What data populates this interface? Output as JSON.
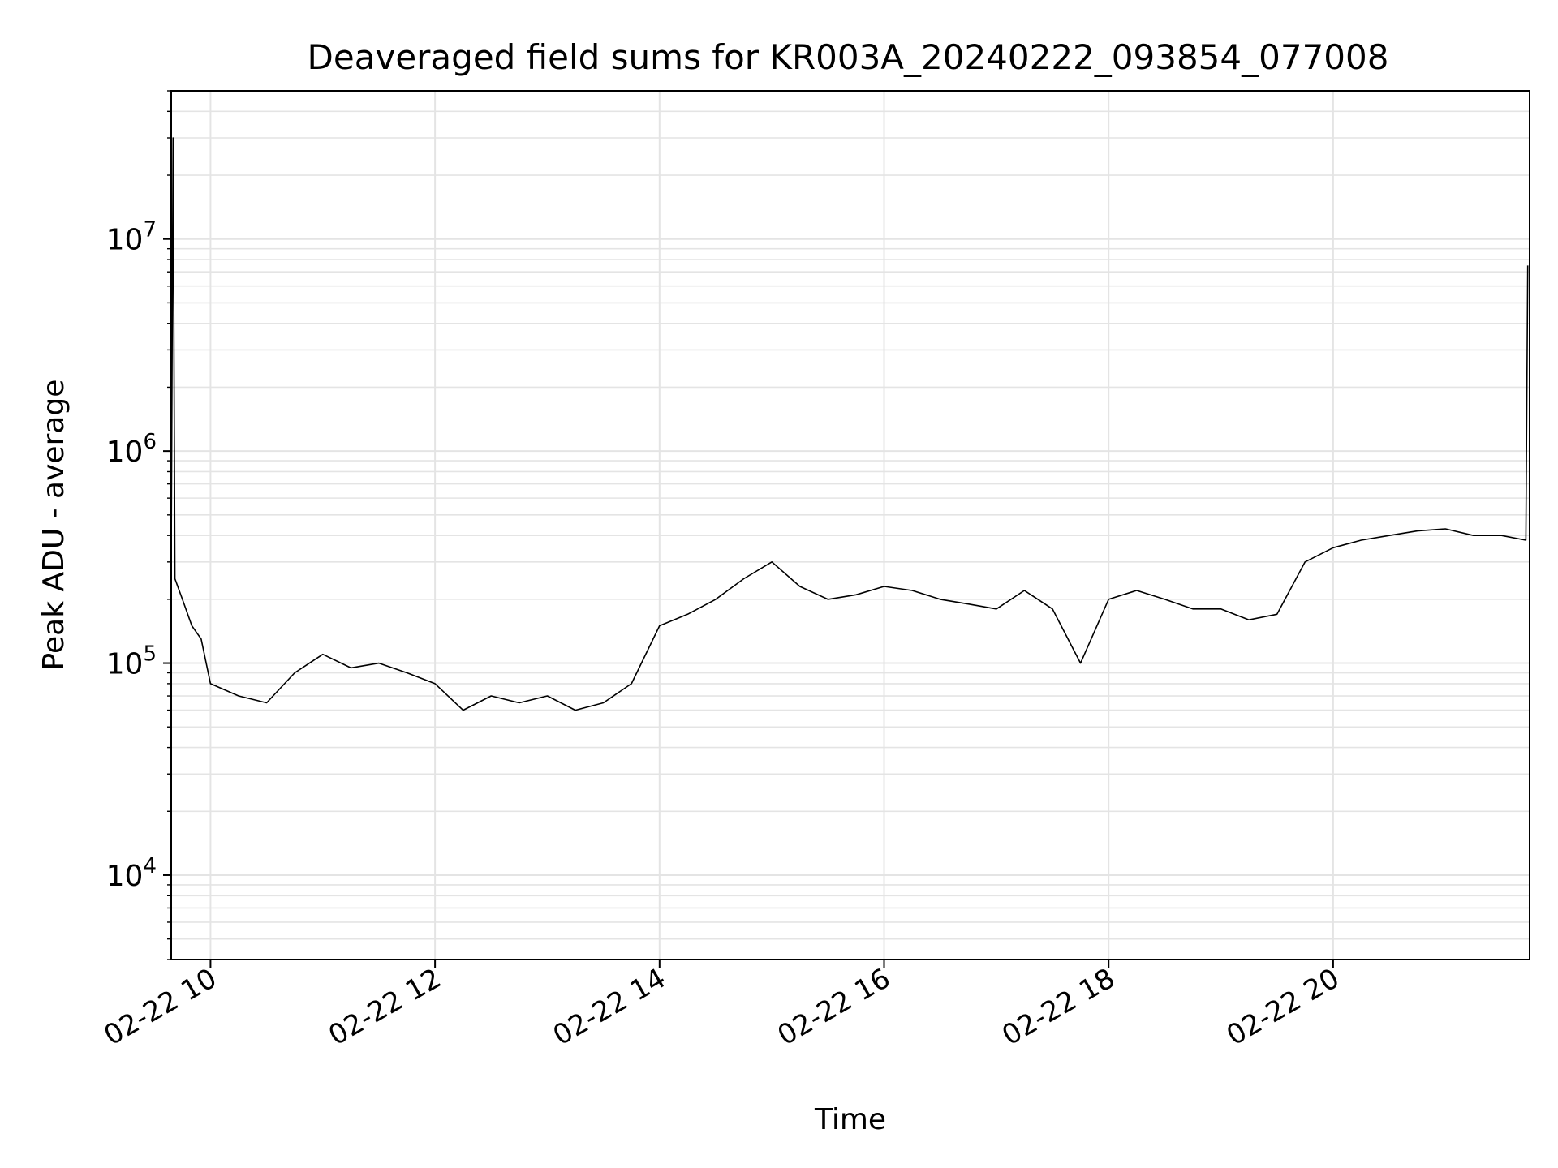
{
  "chart_data": {
    "type": "line",
    "title": "Deaveraged field sums for KR003A_20240222_093854_077008",
    "xlabel": "Time",
    "ylabel": "Peak ADU - average",
    "x_ticks": [
      "02-22 10",
      "02-22 12",
      "02-22 14",
      "02-22 16",
      "02-22 18",
      "02-22 20"
    ],
    "y_ticks": [
      {
        "value": 10000,
        "base": "10",
        "exp": "4"
      },
      {
        "value": 100000,
        "base": "10",
        "exp": "5"
      },
      {
        "value": 1000000,
        "base": "10",
        "exp": "6"
      },
      {
        "value": 10000000,
        "base": "10",
        "exp": "7"
      }
    ],
    "x_range": [
      "2024-02-22 09:39",
      "2024-02-22 21:45"
    ],
    "y_range": [
      4000,
      50000000
    ],
    "y_scale": "log",
    "grid": true,
    "line_color": "#000000",
    "series": [
      {
        "points": [
          [
            "2024-02-22 09:39",
            300000
          ],
          [
            "2024-02-22 09:40",
            30000000
          ],
          [
            "2024-02-22 09:41",
            250000
          ],
          [
            "2024-02-22 09:45",
            200000
          ],
          [
            "2024-02-22 09:50",
            150000
          ],
          [
            "2024-02-22 09:55",
            130000
          ],
          [
            "2024-02-22 10:00",
            80000
          ],
          [
            "2024-02-22 10:15",
            70000
          ],
          [
            "2024-02-22 10:30",
            65000
          ],
          [
            "2024-02-22 10:45",
            90000
          ],
          [
            "2024-02-22 11:00",
            110000
          ],
          [
            "2024-02-22 11:15",
            95000
          ],
          [
            "2024-02-22 11:30",
            100000
          ],
          [
            "2024-02-22 11:45",
            90000
          ],
          [
            "2024-02-22 12:00",
            80000
          ],
          [
            "2024-02-22 12:15",
            60000
          ],
          [
            "2024-02-22 12:30",
            70000
          ],
          [
            "2024-02-22 12:45",
            65000
          ],
          [
            "2024-02-22 13:00",
            70000
          ],
          [
            "2024-02-22 13:15",
            60000
          ],
          [
            "2024-02-22 13:30",
            65000
          ],
          [
            "2024-02-22 13:45",
            80000
          ],
          [
            "2024-02-22 14:00",
            150000
          ],
          [
            "2024-02-22 14:15",
            170000
          ],
          [
            "2024-02-22 14:30",
            200000
          ],
          [
            "2024-02-22 14:45",
            250000
          ],
          [
            "2024-02-22 15:00",
            300000
          ],
          [
            "2024-02-22 15:15",
            230000
          ],
          [
            "2024-02-22 15:30",
            200000
          ],
          [
            "2024-02-22 15:45",
            210000
          ],
          [
            "2024-02-22 16:00",
            230000
          ],
          [
            "2024-02-22 16:15",
            220000
          ],
          [
            "2024-02-22 16:30",
            200000
          ],
          [
            "2024-02-22 16:45",
            190000
          ],
          [
            "2024-02-22 17:00",
            180000
          ],
          [
            "2024-02-22 17:15",
            220000
          ],
          [
            "2024-02-22 17:30",
            180000
          ],
          [
            "2024-02-22 17:45",
            100000
          ],
          [
            "2024-02-22 18:00",
            200000
          ],
          [
            "2024-02-22 18:15",
            220000
          ],
          [
            "2024-02-22 18:30",
            200000
          ],
          [
            "2024-02-22 18:45",
            180000
          ],
          [
            "2024-02-22 19:00",
            180000
          ],
          [
            "2024-02-22 19:15",
            160000
          ],
          [
            "2024-02-22 19:30",
            170000
          ],
          [
            "2024-02-22 19:45",
            300000
          ],
          [
            "2024-02-22 20:00",
            350000
          ],
          [
            "2024-02-22 20:15",
            380000
          ],
          [
            "2024-02-22 20:30",
            400000
          ],
          [
            "2024-02-22 20:45",
            420000
          ],
          [
            "2024-02-22 21:00",
            430000
          ],
          [
            "2024-02-22 21:15",
            400000
          ],
          [
            "2024-02-22 21:30",
            400000
          ],
          [
            "2024-02-22 21:43",
            380000
          ],
          [
            "2024-02-22 21:44",
            7500000
          ]
        ]
      }
    ]
  }
}
